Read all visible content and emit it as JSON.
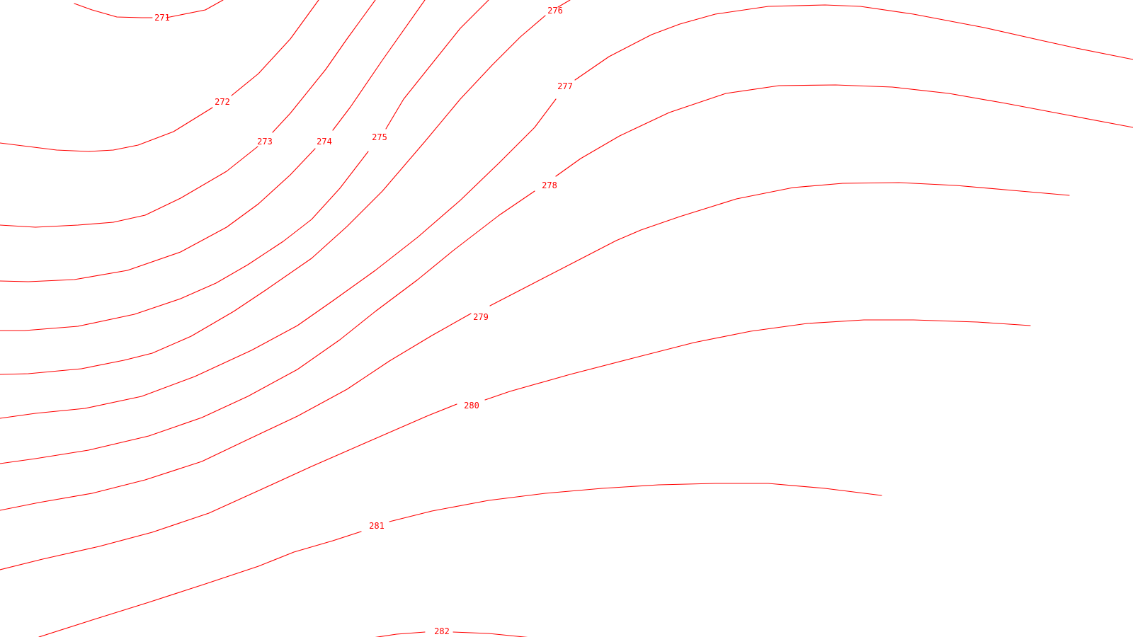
{
  "map": {
    "line_color": "#ff0000",
    "background_color": "#ffffff",
    "contours": [
      {
        "id": "c271",
        "label": "271"
      },
      {
        "id": "c272",
        "label": "272"
      },
      {
        "id": "c273",
        "label": "273"
      },
      {
        "id": "c274",
        "label": "274"
      },
      {
        "id": "c275",
        "label": "275"
      },
      {
        "id": "c276",
        "label": "276"
      },
      {
        "id": "c277",
        "label": "277"
      },
      {
        "id": "c278",
        "label": "278"
      },
      {
        "id": "c279",
        "label": "279"
      },
      {
        "id": "c280",
        "label": "280"
      },
      {
        "id": "c281",
        "label": "281"
      },
      {
        "id": "c282",
        "label": "282"
      }
    ]
  }
}
